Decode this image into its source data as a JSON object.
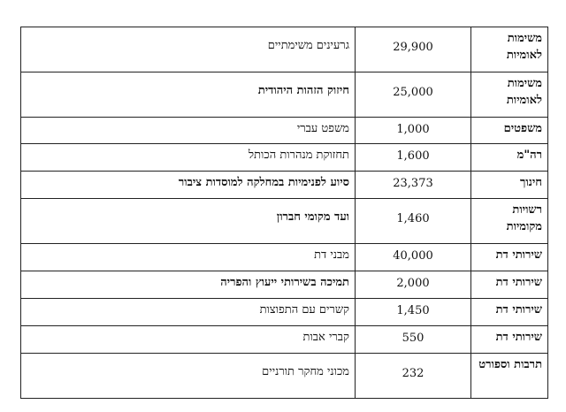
{
  "rows": [
    {
      "category": "משימות לאומיות",
      "amount": "29,900",
      "purpose": "גרעינים משימתיים",
      "bold": false
    },
    {
      "category": "משימות לאומיות",
      "amount": "25,000",
      "purpose": "חיזוק הזהות היהודית",
      "bold": true
    },
    {
      "category": "משפטים",
      "amount": "1,000",
      "purpose": "משפט עברי",
      "bold": false
    },
    {
      "category": "רה\"מ",
      "amount": "1,600",
      "purpose": "תחזוקת מנהרות הכותל",
      "bold": false
    },
    {
      "category": "חינוך",
      "amount": "23,373",
      "purpose": "סיוע לפנימיות במחלקה למוסדות ציבור",
      "bold": true
    },
    {
      "category": "רשויות מקומיות",
      "amount": "1,460",
      "purpose": "ועד מקומי חברון",
      "bold": true
    },
    {
      "category": "שירותי דת",
      "amount": "40,000",
      "purpose": "מבני דת",
      "bold": false
    },
    {
      "category": "שירותי דת",
      "amount": "2,000",
      "purpose": "תמיכה בשירותי ייעוץ והפריה",
      "bold": true
    },
    {
      "category": "שירותי דת",
      "amount": "1,450",
      "purpose": "קשרים עם התפוצות",
      "bold": false
    },
    {
      "category": "שירותי דת",
      "amount": "550",
      "purpose": "קברי אבות",
      "bold": false
    },
    {
      "category": "תרבות וספורט",
      "amount": "232",
      "purpose": "מכוני מחקר תורניים",
      "bold": false
    }
  ]
}
